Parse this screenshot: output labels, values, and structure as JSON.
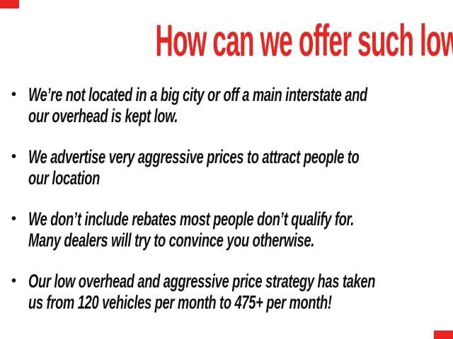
{
  "slide": {
    "title": "How can we offer such low prices?",
    "title_color": "#e8251f",
    "text_color": "#111111",
    "background_color": "#ffffff",
    "corner_accent_color": "#e8251f",
    "bullet_glyph": "•",
    "bullets": [
      {
        "lines": [
          "We’re not located in a big city or off a main interstate and",
          "our overhead is kept low."
        ]
      },
      {
        "lines": [
          "We advertise very aggressive prices to attract people to",
          "our location"
        ]
      },
      {
        "lines": [
          "We don’t include rebates most people don’t qualify for.",
          "Many dealers will try to convince you otherwise."
        ]
      },
      {
        "lines": [
          "Our low overhead and aggressive price strategy has taken",
          "us from 120 vehicles per month to 475+ per month!"
        ]
      }
    ]
  }
}
